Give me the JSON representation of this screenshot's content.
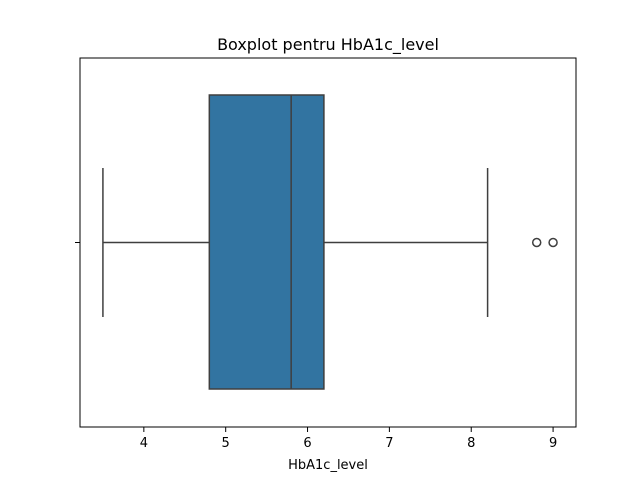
{
  "chart_data": {
    "type": "boxplot",
    "title": "Boxplot pentru HbA1c_level",
    "xlabel": "HbA1c_level",
    "ylabel": "",
    "orientation": "horizontal",
    "xlim": [
      3.22,
      9.28
    ],
    "xticks": [
      4,
      5,
      6,
      7,
      8,
      9
    ],
    "grid": false,
    "box_color": "#3274a1",
    "line_color": "#3f3f3f",
    "stats": {
      "whisker_low": 3.5,
      "q1": 4.8,
      "median": 5.8,
      "q3": 6.2,
      "whisker_high": 8.2,
      "outliers": [
        8.8,
        9.0
      ]
    }
  }
}
